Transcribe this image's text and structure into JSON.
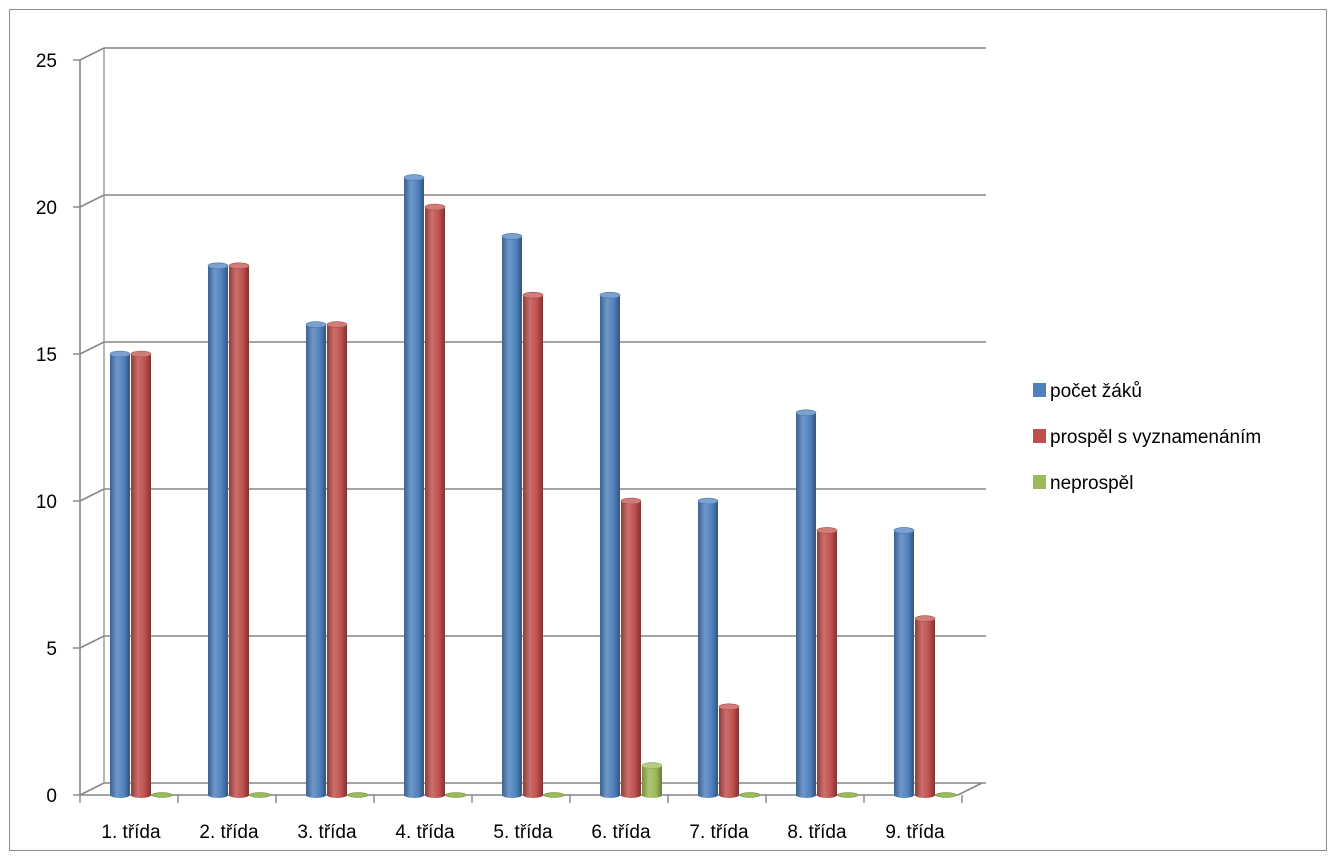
{
  "chart_data": {
    "type": "bar",
    "categories": [
      "1. třída",
      "2. třída",
      "3. třída",
      "4. třída",
      "5. třída",
      "6. třída",
      "7. třída",
      "8. třída",
      "9. třída"
    ],
    "series": [
      {
        "name": "počet žáků",
        "values": [
          15,
          18,
          16,
          21,
          19,
          17,
          10,
          13,
          9
        ],
        "color": "#4f81bd"
      },
      {
        "name": "prospěl s vyznamenáním",
        "values": [
          15,
          18,
          16,
          20,
          17,
          10,
          3,
          9,
          6
        ],
        "color": "#c0504d"
      },
      {
        "name": "neprospěl",
        "values": [
          0,
          0,
          0,
          0,
          0,
          1,
          0,
          0,
          0
        ],
        "color": "#9bbb59"
      }
    ],
    "yticks": [
      "0",
      "5",
      "10",
      "15",
      "20",
      "25"
    ],
    "ylim": [
      0,
      25
    ],
    "grid": true,
    "legend_position": "right",
    "style": "3d-cylinder"
  }
}
